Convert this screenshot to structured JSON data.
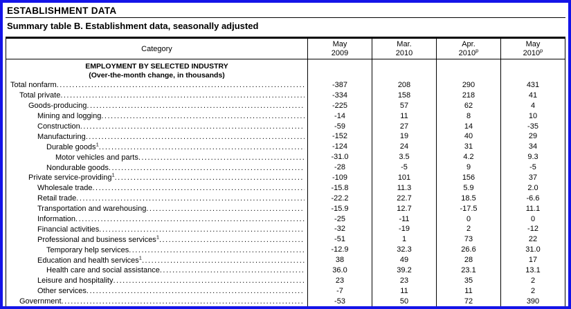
{
  "page": {
    "title": "ESTABLISHMENT DATA",
    "subtitle": "Summary table B. Establishment data, seasonally adjusted"
  },
  "colors": {
    "frame_border": "#1414e8",
    "rule": "#000000"
  },
  "table": {
    "category_header": "Category",
    "columns": [
      {
        "month": "May",
        "year": "2009",
        "sup": ""
      },
      {
        "month": "Mar.",
        "year": "2010",
        "sup": ""
      },
      {
        "month": "Apr.",
        "year": "2010",
        "sup": "p"
      },
      {
        "month": "May",
        "year": "2010",
        "sup": "p"
      }
    ],
    "section": {
      "line1": "EMPLOYMENT BY SELECTED INDUSTRY",
      "line2": "(Over-the-month change, in thousands)"
    },
    "rows": [
      {
        "label": "Total nonfarm",
        "sup": "",
        "indent": 0,
        "values": [
          "-387",
          "208",
          "290",
          "431"
        ]
      },
      {
        "label": "Total private",
        "sup": "",
        "indent": 1,
        "values": [
          "-334",
          "158",
          "218",
          "41"
        ]
      },
      {
        "label": "Goods-producing",
        "sup": "",
        "indent": 2,
        "values": [
          "-225",
          "57",
          "62",
          "4"
        ]
      },
      {
        "label": "Mining and logging",
        "sup": "",
        "indent": 3,
        "values": [
          "-14",
          "11",
          "8",
          "10"
        ]
      },
      {
        "label": "Construction",
        "sup": "",
        "indent": 3,
        "values": [
          "-59",
          "27",
          "14",
          "-35"
        ]
      },
      {
        "label": "Manufacturing",
        "sup": "",
        "indent": 3,
        "values": [
          "-152",
          "19",
          "40",
          "29"
        ]
      },
      {
        "label": "Durable goods",
        "sup": "1",
        "indent": 4,
        "values": [
          "-124",
          "24",
          "31",
          "34"
        ]
      },
      {
        "label": "Motor vehicles and parts",
        "sup": "",
        "indent": 5,
        "values": [
          "-31.0",
          "3.5",
          "4.2",
          "9.3"
        ]
      },
      {
        "label": "Nondurable goods",
        "sup": "",
        "indent": 4,
        "values": [
          "-28",
          "-5",
          "9",
          "-5"
        ]
      },
      {
        "label": "Private service-providing",
        "sup": "1",
        "indent": 2,
        "values": [
          "-109",
          "101",
          "156",
          "37"
        ]
      },
      {
        "label": "Wholesale trade",
        "sup": "",
        "indent": 3,
        "values": [
          "-15.8",
          "11.3",
          "5.9",
          "2.0"
        ]
      },
      {
        "label": "Retail trade",
        "sup": "",
        "indent": 3,
        "values": [
          "-22.2",
          "22.7",
          "18.5",
          "-6.6"
        ]
      },
      {
        "label": "Transportation and warehousing",
        "sup": "",
        "indent": 3,
        "values": [
          "-15.9",
          "12.7",
          "-17.5",
          "11.1"
        ]
      },
      {
        "label": "Information",
        "sup": "",
        "indent": 3,
        "values": [
          "-25",
          "-11",
          "0",
          "0"
        ]
      },
      {
        "label": "Financial activities",
        "sup": "",
        "indent": 3,
        "values": [
          "-32",
          "-19",
          "2",
          "-12"
        ]
      },
      {
        "label": "Professional and business services",
        "sup": "1",
        "indent": 3,
        "values": [
          "-51",
          "1",
          "73",
          "22"
        ]
      },
      {
        "label": "Temporary help services",
        "sup": "",
        "indent": 4,
        "values": [
          "-12.9",
          "32.3",
          "26.6",
          "31.0"
        ]
      },
      {
        "label": "Education and health services",
        "sup": "1",
        "indent": 3,
        "values": [
          "38",
          "49",
          "28",
          "17"
        ]
      },
      {
        "label": "Health care and social assistance",
        "sup": "",
        "indent": 4,
        "values": [
          "36.0",
          "39.2",
          "23.1",
          "13.1"
        ]
      },
      {
        "label": "Leisure and hospitality",
        "sup": "",
        "indent": 3,
        "values": [
          "23",
          "23",
          "35",
          "2"
        ]
      },
      {
        "label": "Other services",
        "sup": "",
        "indent": 3,
        "values": [
          "-7",
          "11",
          "11",
          "2"
        ]
      },
      {
        "label": "Government",
        "sup": "",
        "indent": 1,
        "values": [
          "-53",
          "50",
          "72",
          "390"
        ]
      }
    ]
  }
}
